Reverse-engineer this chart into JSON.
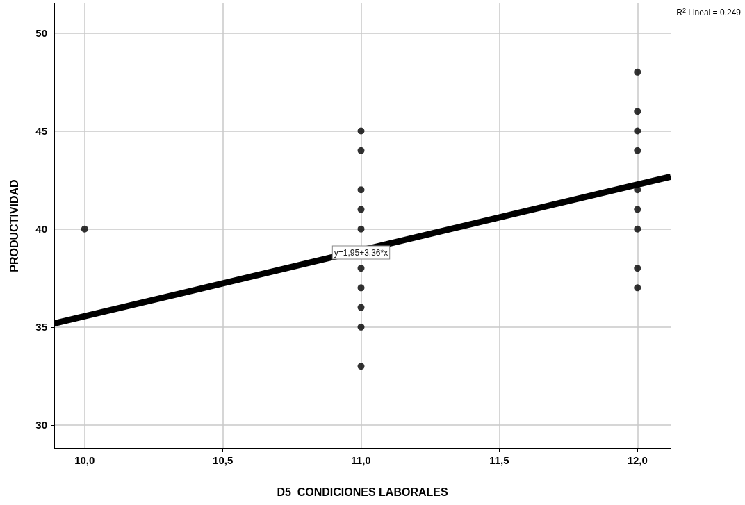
{
  "chart_data": {
    "type": "scatter",
    "xlabel": "D5_CONDICIONES LABORALES",
    "ylabel": "PRODUCTIVIDAD",
    "xlim": [
      9.89,
      12.12
    ],
    "ylim": [
      28.83,
      51.5
    ],
    "xticks": [
      {
        "value": 10,
        "label": "10,0"
      },
      {
        "value": 10.5,
        "label": "10,5"
      },
      {
        "value": 11,
        "label": "11,0"
      },
      {
        "value": 11.5,
        "label": "11,5"
      },
      {
        "value": 12,
        "label": "12,0"
      }
    ],
    "yticks": [
      30,
      35,
      40,
      45,
      50
    ],
    "grid": true,
    "marker": "circle",
    "series": [
      {
        "color": "#000000",
        "x": [
          10,
          11,
          11,
          11,
          11,
          11,
          11,
          11,
          11,
          11,
          11,
          12,
          12,
          12,
          12,
          12,
          12,
          12,
          12,
          12
        ],
        "values": [
          40,
          45,
          44,
          42,
          41,
          40,
          38,
          37,
          36,
          35,
          33,
          48,
          46,
          45,
          44,
          42,
          41,
          40,
          38,
          37
        ]
      },
      {
        "type": "line",
        "color": "#000000",
        "marker": "none",
        "line_style": "solid",
        "x": [
          9.89,
          12.12
        ],
        "values": [
          35.18,
          42.67
        ]
      }
    ],
    "annotations": [
      {
        "text": "y=1,95+3,36*x",
        "x": 11,
        "y": 38.8
      },
      "R$^{2}$ Lineal = 0,249"
    ]
  }
}
